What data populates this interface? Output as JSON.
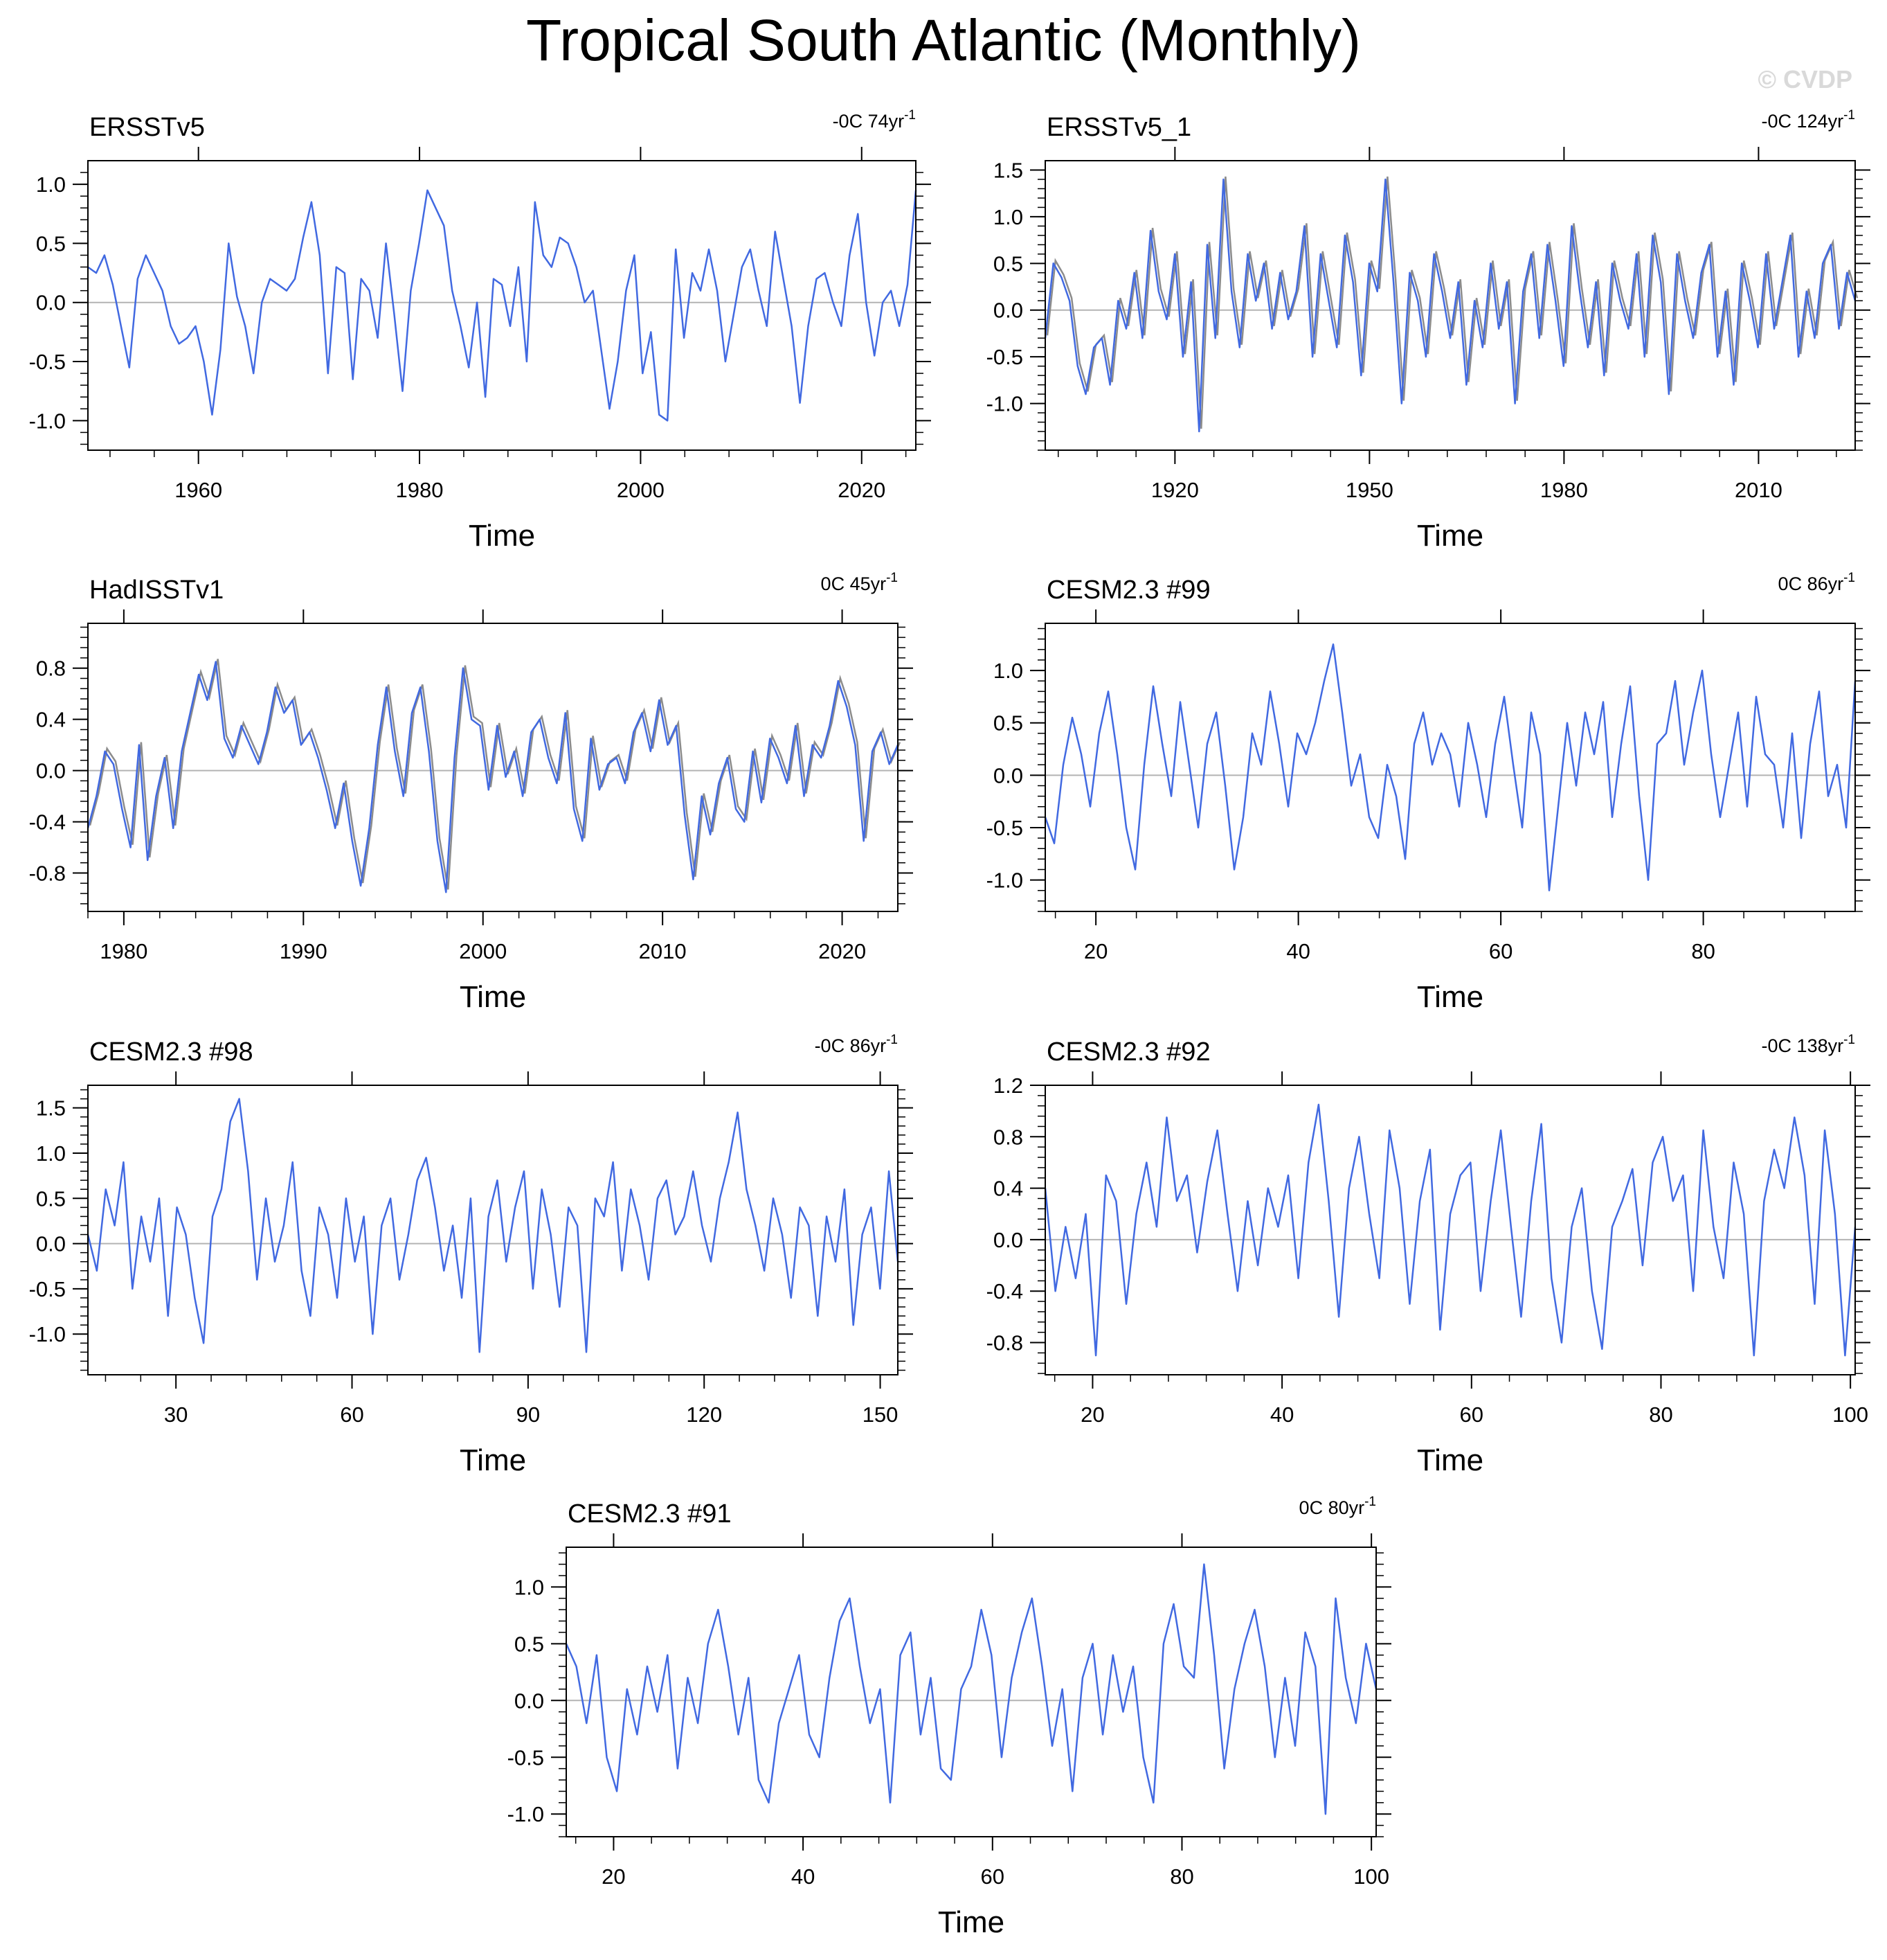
{
  "figure": {
    "title": "Tropical South Atlantic (Monthly)",
    "watermark": "© CVDP",
    "colors": {
      "series": "#4169e1",
      "obs_overlay": "#8c8c8c",
      "zero_line": "#b3b3b3",
      "axes": "#000000"
    }
  },
  "chart_data": [
    {
      "type": "line",
      "title": "ERSSTv5",
      "trend_label": "-0C 74yr",
      "xlabel": "Time",
      "xlim": [
        1950,
        2024.9
      ],
      "ylim": [
        -1.25,
        1.2
      ],
      "xticks": [
        1960,
        1980,
        2000,
        2020
      ],
      "xtick_labels": [
        "1960",
        "1980",
        "2000",
        "2020"
      ],
      "yticks": [
        -1.0,
        -0.5,
        0.0,
        0.5,
        1.0
      ],
      "ytick_labels": [
        "-1.0",
        "-0.5",
        "0.0",
        "0.5",
        "1.0"
      ],
      "overlay": false,
      "series": [
        {
          "values": [
            0.3,
            0.25,
            0.4,
            0.15,
            -0.2,
            -0.55,
            0.2,
            0.4,
            0.25,
            0.1,
            -0.2,
            -0.35,
            -0.3,
            -0.2,
            -0.5,
            -0.95,
            -0.4,
            0.5,
            0.05,
            -0.2,
            -0.6,
            0.0,
            0.2,
            0.15,
            0.1,
            0.2,
            0.55,
            0.85,
            0.4,
            -0.6,
            0.3,
            0.25,
            -0.65,
            0.2,
            0.1,
            -0.3,
            0.5,
            -0.1,
            -0.75,
            0.1,
            0.5,
            0.95,
            0.8,
            0.65,
            0.1,
            -0.2,
            -0.55,
            0.0,
            -0.8,
            0.2,
            0.15,
            -0.2,
            0.3,
            -0.5,
            0.85,
            0.4,
            0.3,
            0.55,
            0.5,
            0.3,
            0.0,
            0.1,
            -0.4,
            -0.9,
            -0.5,
            0.1,
            0.4,
            -0.6,
            -0.25,
            -0.95,
            -1.0,
            0.45,
            -0.3,
            0.25,
            0.1,
            0.45,
            0.1,
            -0.5,
            -0.1,
            0.3,
            0.45,
            0.1,
            -0.2,
            0.6,
            0.2,
            -0.2,
            -0.85,
            -0.2,
            0.2,
            0.25,
            0.0,
            -0.2,
            0.4,
            0.75,
            0.0,
            -0.45,
            0.0,
            0.1,
            -0.2,
            0.15,
            0.95
          ]
        }
      ]
    },
    {
      "type": "line",
      "title": "ERSSTv5_1",
      "trend_label": "-0C 124yr",
      "xlabel": "Time",
      "xlim": [
        1900,
        2024.9
      ],
      "ylim": [
        -1.5,
        1.6
      ],
      "xticks": [
        1920,
        1950,
        1980,
        2010
      ],
      "xtick_labels": [
        "1920",
        "1950",
        "1980",
        "2010"
      ],
      "yticks": [
        -1.0,
        -0.5,
        0.0,
        0.5,
        1.0,
        1.5
      ],
      "ytick_labels": [
        "-1.0",
        "-0.5",
        "0.0",
        "0.5",
        "1.0",
        "1.5"
      ],
      "overlay": true,
      "series": [
        {
          "values": [
            -0.3,
            0.5,
            0.35,
            0.1,
            -0.6,
            -0.9,
            -0.4,
            -0.3,
            -0.8,
            0.1,
            -0.2,
            0.4,
            -0.3,
            0.85,
            0.2,
            -0.1,
            0.6,
            -0.5,
            0.3,
            -1.3,
            0.7,
            -0.3,
            1.4,
            0.2,
            -0.4,
            0.6,
            0.1,
            0.5,
            -0.2,
            0.4,
            -0.1,
            0.2,
            0.9,
            -0.5,
            0.6,
            0.1,
            -0.4,
            0.8,
            0.3,
            -0.7,
            0.5,
            0.2,
            1.4,
            0.3,
            -1.0,
            0.4,
            0.1,
            -0.5,
            0.6,
            0.2,
            -0.3,
            0.3,
            -0.8,
            0.1,
            -0.4,
            0.5,
            -0.2,
            0.3,
            -1.0,
            0.2,
            0.6,
            -0.3,
            0.7,
            0.1,
            -0.6,
            0.9,
            0.2,
            -0.4,
            0.3,
            -0.7,
            0.5,
            0.1,
            -0.2,
            0.6,
            -0.5,
            0.8,
            0.3,
            -0.9,
            0.6,
            0.1,
            -0.3,
            0.4,
            0.7,
            -0.5,
            0.2,
            -0.8,
            0.5,
            0.1,
            -0.4,
            0.6,
            -0.2,
            0.3,
            0.8,
            -0.5,
            0.2,
            -0.3,
            0.5,
            0.7,
            -0.2,
            0.4,
            0.1
          ]
        }
      ]
    },
    {
      "type": "line",
      "title": "HadISSTv1",
      "trend_label": "0C 45yr",
      "xlabel": "Time",
      "xlim": [
        1978,
        2023.1
      ],
      "ylim": [
        -1.1,
        1.15
      ],
      "xticks": [
        1980,
        1990,
        2000,
        2010,
        2020
      ],
      "xtick_labels": [
        "1980",
        "1990",
        "2000",
        "2010",
        "2020"
      ],
      "yticks": [
        -0.8,
        -0.4,
        0.0,
        0.4,
        0.8
      ],
      "ytick_labels": [
        "-0.8",
        "-0.4",
        "0.0",
        "0.4",
        "0.8"
      ],
      "overlay": true,
      "series": [
        {
          "values": [
            -0.45,
            -0.2,
            0.15,
            0.05,
            -0.3,
            -0.6,
            0.2,
            -0.7,
            -0.2,
            0.1,
            -0.45,
            0.15,
            0.45,
            0.75,
            0.55,
            0.85,
            0.25,
            0.1,
            0.35,
            0.2,
            0.05,
            0.3,
            0.65,
            0.45,
            0.55,
            0.2,
            0.3,
            0.1,
            -0.15,
            -0.45,
            -0.1,
            -0.55,
            -0.9,
            -0.45,
            0.2,
            0.65,
            0.15,
            -0.2,
            0.45,
            0.65,
            0.15,
            -0.55,
            -0.95,
            0.1,
            0.8,
            0.4,
            0.35,
            -0.15,
            0.35,
            -0.05,
            0.15,
            -0.2,
            0.3,
            0.4,
            0.1,
            -0.1,
            0.45,
            -0.3,
            -0.55,
            0.25,
            -0.15,
            0.05,
            0.1,
            -0.1,
            0.3,
            0.45,
            0.15,
            0.55,
            0.2,
            0.35,
            -0.35,
            -0.85,
            -0.2,
            -0.5,
            -0.1,
            0.1,
            -0.3,
            -0.4,
            0.15,
            -0.25,
            0.25,
            0.1,
            -0.1,
            0.35,
            -0.2,
            0.2,
            0.1,
            0.35,
            0.7,
            0.5,
            0.2,
            -0.55,
            0.15,
            0.3,
            0.05,
            0.2
          ]
        }
      ]
    },
    {
      "type": "line",
      "title": "CESM2.3 #99",
      "trend_label": "0C 86yr",
      "xlabel": "Time",
      "xlim": [
        15,
        95
      ],
      "ylim": [
        -1.3,
        1.45
      ],
      "xticks": [
        20,
        40,
        60,
        80
      ],
      "xtick_labels": [
        "20",
        "40",
        "60",
        "80"
      ],
      "yticks": [
        -1.0,
        -0.5,
        0.0,
        0.5,
        1.0
      ],
      "ytick_labels": [
        "-1.0",
        "-0.5",
        "0.0",
        "0.5",
        "1.0"
      ],
      "overlay": false,
      "series": [
        {
          "values": [
            -0.4,
            -0.65,
            0.1,
            0.55,
            0.2,
            -0.3,
            0.4,
            0.8,
            0.2,
            -0.5,
            -0.9,
            0.1,
            0.85,
            0.3,
            -0.2,
            0.7,
            0.1,
            -0.5,
            0.3,
            0.6,
            -0.1,
            -0.9,
            -0.4,
            0.4,
            0.1,
            0.8,
            0.3,
            -0.3,
            0.4,
            0.2,
            0.5,
            0.9,
            1.25,
            0.6,
            -0.1,
            0.2,
            -0.4,
            -0.6,
            0.1,
            -0.2,
            -0.8,
            0.3,
            0.6,
            0.1,
            0.4,
            0.2,
            -0.3,
            0.5,
            0.1,
            -0.4,
            0.3,
            0.75,
            0.1,
            -0.5,
            0.6,
            0.2,
            -1.1,
            -0.3,
            0.5,
            -0.1,
            0.6,
            0.2,
            0.7,
            -0.4,
            0.3,
            0.85,
            -0.2,
            -1.0,
            0.3,
            0.4,
            0.9,
            0.1,
            0.6,
            1.0,
            0.2,
            -0.4,
            0.1,
            0.6,
            -0.3,
            0.75,
            0.2,
            0.1,
            -0.5,
            0.4,
            -0.6,
            0.3,
            0.8,
            -0.2,
            0.1,
            -0.5,
            0.9
          ]
        }
      ]
    },
    {
      "type": "line",
      "title": "CESM2.3 #98",
      "trend_label": "-0C 86yr",
      "xlabel": "Time",
      "xlim": [
        15,
        153
      ],
      "ylim": [
        -1.45,
        1.75
      ],
      "xticks": [
        30,
        60,
        90,
        120,
        150
      ],
      "xtick_labels": [
        "30",
        "60",
        "90",
        "120",
        "150"
      ],
      "yticks": [
        -1.0,
        -0.5,
        0.0,
        0.5,
        1.0,
        1.5
      ],
      "ytick_labels": [
        "-1.0",
        "-0.5",
        "0.0",
        "0.5",
        "1.0",
        "1.5"
      ],
      "overlay": false,
      "series": [
        {
          "values": [
            0.1,
            -0.3,
            0.6,
            0.2,
            0.9,
            -0.5,
            0.3,
            -0.2,
            0.5,
            -0.8,
            0.4,
            0.1,
            -0.6,
            -1.1,
            0.3,
            0.6,
            1.35,
            1.6,
            0.8,
            -0.4,
            0.5,
            -0.2,
            0.2,
            0.9,
            -0.3,
            -0.8,
            0.4,
            0.1,
            -0.6,
            0.5,
            -0.2,
            0.3,
            -1.0,
            0.2,
            0.5,
            -0.4,
            0.1,
            0.7,
            0.95,
            0.4,
            -0.3,
            0.2,
            -0.6,
            0.5,
            -1.2,
            0.3,
            0.7,
            -0.2,
            0.4,
            0.8,
            -0.5,
            0.6,
            0.1,
            -0.7,
            0.4,
            0.2,
            -1.2,
            0.5,
            0.3,
            0.9,
            -0.3,
            0.6,
            0.2,
            -0.4,
            0.5,
            0.7,
            0.1,
            0.3,
            0.8,
            0.2,
            -0.2,
            0.5,
            0.9,
            1.45,
            0.6,
            0.2,
            -0.3,
            0.5,
            0.1,
            -0.6,
            0.4,
            0.2,
            -0.8,
            0.3,
            -0.2,
            0.6,
            -0.9,
            0.1,
            0.4,
            -0.5,
            0.8,
            -0.2
          ]
        }
      ]
    },
    {
      "type": "line",
      "title": "CESM2.3 #92",
      "trend_label": "-0C 138yr",
      "xlabel": "Time",
      "xlim": [
        15,
        100.5
      ],
      "ylim": [
        -1.05,
        1.2
      ],
      "xticks": [
        20,
        40,
        60,
        80,
        100
      ],
      "xtick_labels": [
        "20",
        "40",
        "60",
        "80",
        "100"
      ],
      "yticks": [
        -0.8,
        -0.4,
        0.0,
        0.4,
        0.8,
        1.2
      ],
      "ytick_labels": [
        "-0.8",
        "-0.4",
        "0.0",
        "0.4",
        "0.8",
        "1.2"
      ],
      "overlay": false,
      "series": [
        {
          "values": [
            0.4,
            -0.4,
            0.1,
            -0.3,
            0.2,
            -0.9,
            0.5,
            0.3,
            -0.5,
            0.2,
            0.6,
            0.1,
            0.95,
            0.3,
            0.5,
            -0.1,
            0.45,
            0.85,
            0.2,
            -0.4,
            0.3,
            -0.2,
            0.4,
            0.1,
            0.5,
            -0.3,
            0.6,
            1.05,
            0.3,
            -0.6,
            0.4,
            0.8,
            0.2,
            -0.3,
            0.85,
            0.4,
            -0.5,
            0.3,
            0.7,
            -0.7,
            0.2,
            0.5,
            0.6,
            -0.4,
            0.3,
            0.85,
            0.1,
            -0.6,
            0.3,
            0.9,
            -0.3,
            -0.8,
            0.1,
            0.4,
            -0.4,
            -0.85,
            0.1,
            0.3,
            0.55,
            -0.2,
            0.6,
            0.8,
            0.3,
            0.5,
            -0.4,
            0.85,
            0.1,
            -0.3,
            0.6,
            0.2,
            -0.9,
            0.3,
            0.7,
            0.4,
            0.95,
            0.5,
            -0.5,
            0.85,
            0.2,
            -0.9,
            0.1
          ]
        }
      ]
    },
    {
      "type": "line",
      "title": "CESM2.3 #91",
      "trend_label": "0C 80yr",
      "xlabel": "Time",
      "xlim": [
        15,
        100.5
      ],
      "ylim": [
        -1.2,
        1.35
      ],
      "xticks": [
        20,
        40,
        60,
        80,
        100
      ],
      "xtick_labels": [
        "20",
        "40",
        "60",
        "80",
        "100"
      ],
      "yticks": [
        -1.0,
        -0.5,
        0.0,
        0.5,
        1.0
      ],
      "ytick_labels": [
        "-1.0",
        "-0.5",
        "0.0",
        "0.5",
        "1.0"
      ],
      "overlay": false,
      "series": [
        {
          "values": [
            0.5,
            0.3,
            -0.2,
            0.4,
            -0.5,
            -0.8,
            0.1,
            -0.3,
            0.3,
            -0.1,
            0.4,
            -0.6,
            0.2,
            -0.2,
            0.5,
            0.8,
            0.3,
            -0.3,
            0.2,
            -0.7,
            -0.9,
            -0.2,
            0.1,
            0.4,
            -0.3,
            -0.5,
            0.2,
            0.7,
            0.9,
            0.3,
            -0.2,
            0.1,
            -0.9,
            0.4,
            0.6,
            -0.3,
            0.2,
            -0.6,
            -0.7,
            0.1,
            0.3,
            0.8,
            0.4,
            -0.5,
            0.2,
            0.6,
            0.9,
            0.3,
            -0.4,
            0.1,
            -0.8,
            0.2,
            0.5,
            -0.3,
            0.4,
            -0.1,
            0.3,
            -0.5,
            -0.9,
            0.5,
            0.85,
            0.3,
            0.2,
            1.2,
            0.4,
            -0.6,
            0.1,
            0.5,
            0.8,
            0.3,
            -0.5,
            0.2,
            -0.4,
            0.6,
            0.3,
            -1.0,
            0.9,
            0.2,
            -0.2,
            0.5,
            0.1
          ]
        }
      ]
    }
  ]
}
